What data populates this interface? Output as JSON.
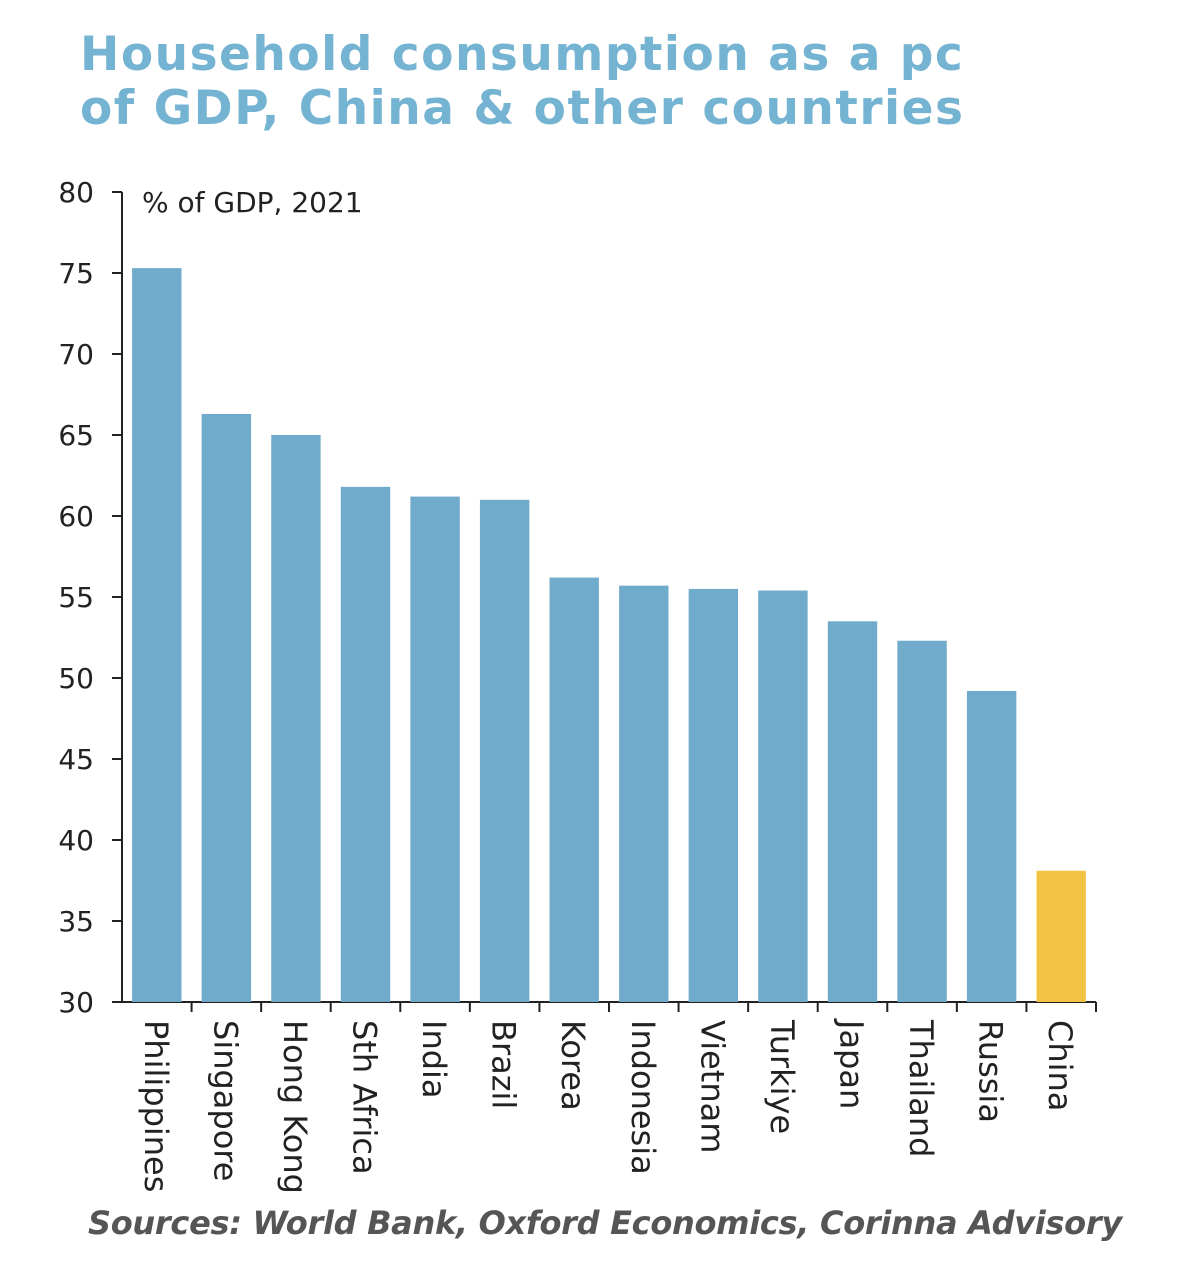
{
  "title_line1": "Household consumption as a pc",
  "title_line2": "of GDP, China & other countries",
  "source": "Sources: World Bank, Oxford Economics, Corinna Advisory",
  "colors": {
    "title": "#74b3d1",
    "bar": "#71abcb",
    "highlight": "#f2c343",
    "axis": "#222222"
  },
  "chart_data": {
    "type": "bar",
    "title": "Household consumption as a pc of GDP, China & other countries",
    "annotation": "% of GDP, 2021",
    "categories": [
      "Philippines",
      "Singapore",
      "Hong Kong",
      "Sth Africa",
      "India",
      "Brazil",
      "Korea",
      "Indonesia",
      "Vietnam",
      "Turkiye",
      "Japan",
      "Thailand",
      "Russia",
      "China"
    ],
    "values": [
      75.3,
      66.3,
      65.0,
      61.8,
      61.2,
      61.0,
      56.2,
      55.7,
      55.5,
      55.4,
      53.5,
      52.3,
      49.2,
      38.1
    ],
    "highlight": "China",
    "ylim": [
      30,
      80
    ],
    "yticks": [
      30,
      35,
      40,
      45,
      50,
      55,
      60,
      65,
      70,
      75,
      80
    ],
    "grid": false
  }
}
